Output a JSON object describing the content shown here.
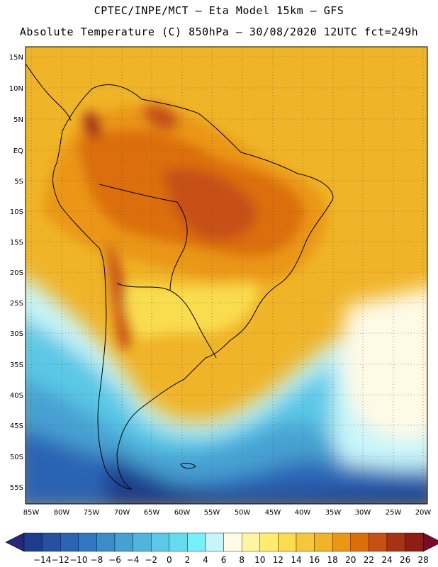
{
  "header": {
    "line1": "CPTEC/INPE/MCT –   Eta Model 15km – GFS",
    "line2": "Absolute Temperature (C) 850hPa – 30/08/2020 12UTC fct=249h"
  },
  "lat_labels": [
    "15N",
    "10N",
    "5N",
    "EQ",
    "5S",
    "10S",
    "15S",
    "20S",
    "25S",
    "30S",
    "35S",
    "40S",
    "45S",
    "50S",
    "55S"
  ],
  "lon_labels": [
    "85W",
    "80W",
    "75W",
    "70W",
    "65W",
    "60W",
    "55W",
    "50W",
    "45W",
    "40W",
    "35W",
    "30W",
    "25W",
    "20W"
  ],
  "colorbar": {
    "labels": [
      "-14",
      "-12",
      "-10",
      "-8",
      "-6",
      "-4",
      "-2",
      "0",
      "2",
      "4",
      "6",
      "8",
      "10",
      "12",
      "14",
      "16",
      "18",
      "20",
      "22",
      "24",
      "26",
      "28"
    ],
    "colors": [
      "#1e3c8c",
      "#2650a0",
      "#2c64b4",
      "#3278c0",
      "#3c8cc8",
      "#46a0d2",
      "#50b4dc",
      "#5ac8e6",
      "#64dcf0",
      "#78f0fa",
      "#c8f5fa",
      "#fffae6",
      "#fff5a0",
      "#ffeb6e",
      "#fadc50",
      "#f5c83c",
      "#f0b428",
      "#eb9614",
      "#dc6e0a",
      "#c85014",
      "#aa3214",
      "#8c1e14"
    ],
    "end_left": "#28287a",
    "end_right": "#7a0a28"
  }
}
